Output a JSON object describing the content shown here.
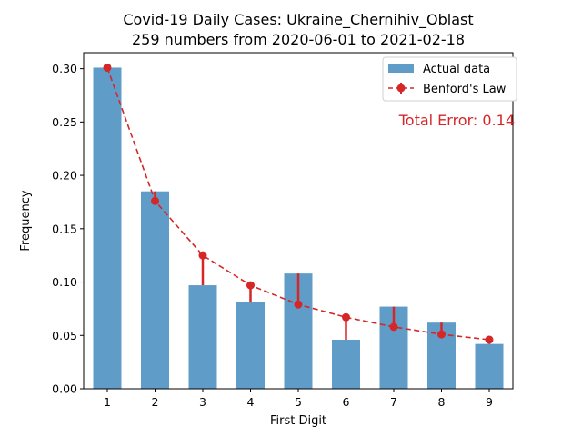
{
  "chart_data": {
    "type": "bar",
    "title": "Covid-19 Daily Cases: Ukraine_Chernihiv_Oblast",
    "subtitle": "259 numbers from 2020-06-01 to 2021-02-18",
    "xlabel": "First Digit",
    "ylabel": "Frequency",
    "categories": [
      "1",
      "2",
      "3",
      "4",
      "5",
      "6",
      "7",
      "8",
      "9"
    ],
    "ylim": [
      0,
      0.3
    ],
    "yticks": [
      "0.00",
      "0.05",
      "0.10",
      "0.15",
      "0.20",
      "0.25",
      "0.30"
    ],
    "series": [
      {
        "name": "Actual data",
        "type": "bar",
        "values": [
          0.301,
          0.185,
          0.097,
          0.081,
          0.108,
          0.046,
          0.077,
          0.062,
          0.042
        ]
      },
      {
        "name": "Benford's Law",
        "type": "line-errorbar",
        "values": [
          0.301,
          0.176,
          0.125,
          0.097,
          0.079,
          0.067,
          0.058,
          0.051,
          0.046
        ]
      }
    ],
    "legend_position": "top-right",
    "annotation": "Total Error: 0.14",
    "colors": {
      "bar": "#5f9dc8",
      "benford": "#d62728",
      "annotation": "#d62728"
    }
  }
}
